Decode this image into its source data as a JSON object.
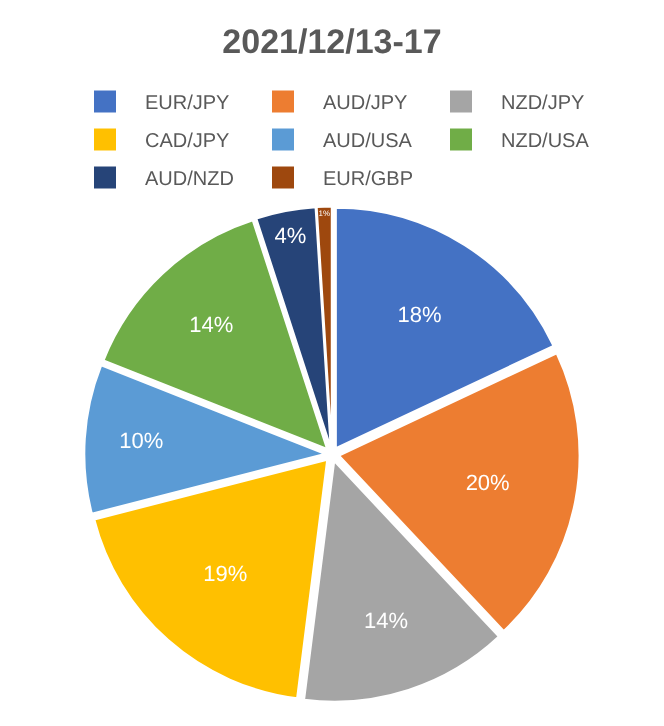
{
  "chart_data": {
    "type": "pie",
    "title": "2021/12/13-17",
    "categories": [
      "EUR/JPY",
      "AUD/JPY",
      "NZD/JPY",
      "CAD/JPY",
      "AUD/USA",
      "NZD/USA",
      "AUD/NZD",
      "EUR/GBP"
    ],
    "values": [
      18,
      20,
      14,
      19,
      10,
      14,
      4,
      1
    ],
    "value_labels": [
      "18%",
      "20%",
      "14%",
      "19%",
      "10%",
      "14%",
      "4%",
      "1%"
    ],
    "colors": [
      "#4472c4",
      "#ed7d31",
      "#a5a5a5",
      "#ffc000",
      "#5b9bd5",
      "#70ad47",
      "#264478",
      "#9e480e"
    ],
    "legend": "top"
  }
}
